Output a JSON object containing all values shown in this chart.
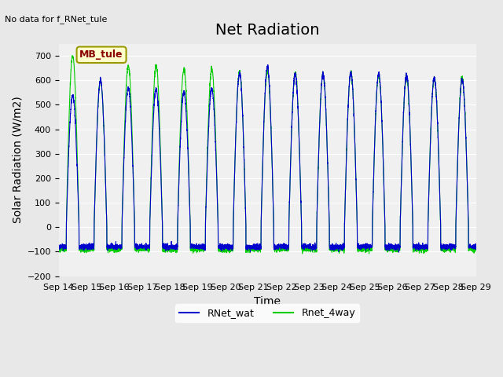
{
  "title": "Net Radiation",
  "no_data_text": "No data for f_RNet_tule",
  "ylabel": "Solar Radiation (W/m2)",
  "xlabel": "Time",
  "ylim": [
    -200,
    750
  ],
  "yticks": [
    -200,
    -100,
    0,
    100,
    200,
    300,
    400,
    500,
    600,
    700
  ],
  "n_days": 15,
  "xtick_labels": [
    "Sep 14",
    "Sep 15",
    "Sep 16",
    "Sep 17",
    "Sep 18",
    "Sep 19",
    "Sep 20",
    "Sep 21",
    "Sep 22",
    "Sep 23",
    "Sep 24",
    "Sep 25",
    "Sep 26",
    "Sep 27",
    "Sep 28",
    "Sep 29"
  ],
  "line1_color": "#0000cc",
  "line2_color": "#00cc00",
  "line1_label": "RNet_wat",
  "line2_label": "Rnet_4way",
  "legend_box_color": "#ffffcc",
  "legend_box_edge": "#999900",
  "legend_box_text": "MB_tule",
  "legend_box_text_color": "#880000",
  "bg_color": "#e8e8e8",
  "plot_bg_color": "#f0f0f0",
  "grid_color": "#ffffff",
  "title_fontsize": 14,
  "label_fontsize": 10,
  "tick_fontsize": 8,
  "peaks_wat": [
    540,
    600,
    570,
    565,
    550,
    565,
    630,
    655,
    625,
    625,
    630,
    625,
    620,
    610,
    605
  ],
  "peaks_4way": [
    700,
    600,
    660,
    660,
    645,
    645,
    635,
    640,
    630,
    625,
    630,
    620,
    615,
    610,
    608
  ]
}
